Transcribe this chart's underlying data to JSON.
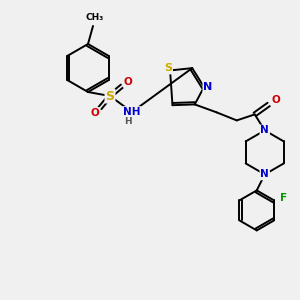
{
  "background_color": "#f0f0f0",
  "atom_colors": {
    "C": "#000000",
    "N": "#0000cc",
    "O": "#cc0000",
    "S": "#ccaa00",
    "F": "#009900",
    "H": "#555555"
  },
  "bond_color": "#000000",
  "figsize": [
    3.0,
    3.0
  ],
  "dpi": 100,
  "lw": 1.4,
  "fontsize": 7.5
}
